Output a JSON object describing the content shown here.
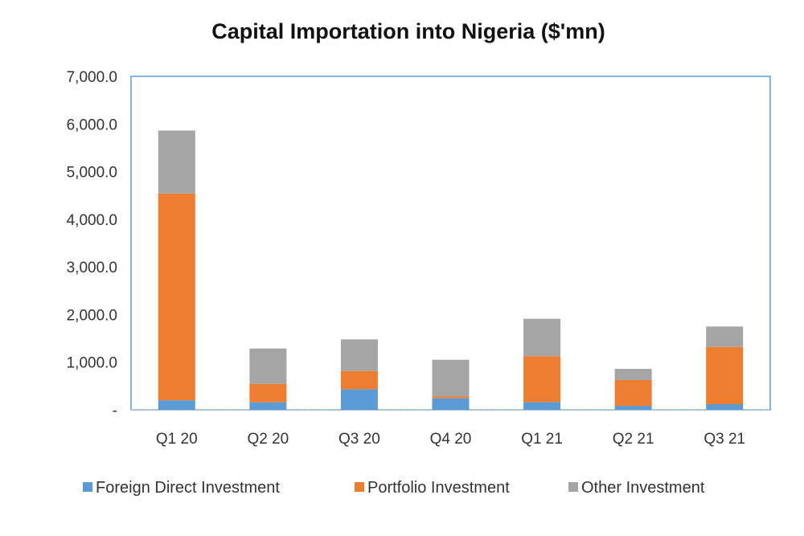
{
  "chart_data": {
    "type": "bar",
    "stacked": true,
    "title": "Capital Importation into Nigeria ($'mn)",
    "xlabel": "",
    "ylabel": "",
    "ylim": [
      0,
      7000
    ],
    "yticks": [
      "-",
      "1,000.0",
      "2,000.0",
      "3,000.0",
      "4,000.0",
      "5,000.0",
      "6,000.0",
      "7,000.0"
    ],
    "categories": [
      "Q1 20",
      "Q2 20",
      "Q3 20",
      "Q4 20",
      "Q1 21",
      "Q2 21",
      "Q3 21"
    ],
    "series": [
      {
        "name": "Foreign Direct Investment",
        "color": "#5b9bd5",
        "values": [
          200,
          157,
          433,
          241,
          163,
          84,
          118
        ]
      },
      {
        "name": "Portfolio Investment",
        "color": "#ed7d31",
        "values": [
          4340,
          388,
          382,
          40,
          961,
          540,
          1202
        ]
      },
      {
        "name": "Other Investment",
        "color": "#a5a5a5",
        "values": [
          1322,
          742,
          664,
          770,
          787,
          236,
          429
        ]
      }
    ],
    "grid": false,
    "legend": "bottom"
  }
}
